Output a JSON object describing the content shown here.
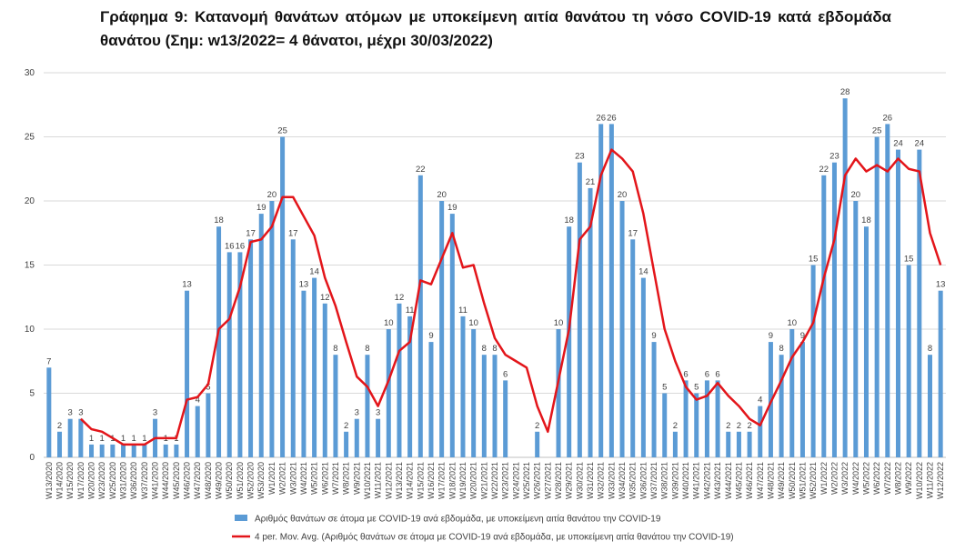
{
  "chart_data": {
    "type": "bar_line",
    "title": "Γράφημα 9: Κατανομή θανάτων ατόμων με υποκείμενη αιτία θανάτου τη νόσο COVID-19 κατά εβδομάδα θανάτου (Σημ: w13/2022= 4 θάνατοι, μέχρι 30/03/2022)",
    "categories": [
      "W13/2020",
      "W14/2020",
      "W15/2020",
      "W17/2020",
      "W20/2020",
      "W23/2020",
      "W25/2020",
      "W31/2020",
      "W36/2020",
      "W37/2020",
      "W41/2020",
      "W44/2020",
      "W45/2020",
      "W46/2020",
      "W47/2020",
      "W48/2020",
      "W49/2020",
      "W50/2020",
      "W51/2020",
      "W52/2020",
      "W53/2020",
      "W1/2021",
      "W2/2021",
      "W3/2021",
      "W4/2021",
      "W5/2021",
      "W6/2021",
      "W7/2021",
      "W8/2021",
      "W9/2021",
      "W10/2021",
      "W11/2021",
      "W12/2021",
      "W13/2021",
      "W14/2021",
      "W15/2021",
      "W16/2021",
      "W17/2021",
      "W18/2021",
      "W19/2021",
      "W20/2021",
      "W21/2021",
      "W22/2021",
      "W23/2021",
      "W24/2021",
      "W25/2021",
      "W26/2021",
      "W27/2021",
      "W28/2021",
      "W29/2021",
      "W30/2021",
      "W31/2021",
      "W32/2021",
      "W33/2021",
      "W34/2021",
      "W35/2021",
      "W36/2021",
      "W37/2021",
      "W38/2021",
      "W39/2021",
      "W40/2021",
      "W41/2021",
      "W42/2021",
      "W43/2021",
      "W44/2021",
      "W45/2021",
      "W46/2021",
      "W47/2021",
      "W48/2021",
      "W49/2021",
      "W50/2021",
      "W51/2021",
      "W52/2021",
      "W1/2022",
      "W2/2022",
      "W3/2022",
      "W4/2022",
      "W5/2022",
      "W6/2022",
      "W7/2022",
      "W8/2022",
      "W9/2022",
      "W10/2022",
      "W11/2022",
      "W12/2022"
    ],
    "series": [
      {
        "name": "Αριθμός θανάτων σε άτομα με COVID-19 ανά εβδομάδα, με υποκείμενη αιτία θανάτου την COVID-19",
        "kind": "bar",
        "color": "#5b9bd5",
        "values": [
          7,
          2,
          3,
          3,
          1,
          1,
          1,
          1,
          1,
          1,
          3,
          1,
          1,
          13,
          4,
          5,
          18,
          16,
          16,
          17,
          19,
          20,
          25,
          17,
          13,
          14,
          12,
          8,
          2,
          3,
          8,
          3,
          10,
          12,
          11,
          22,
          9,
          20,
          19,
          11,
          10,
          8,
          8,
          6,
          null,
          null,
          2,
          null,
          10,
          18,
          23,
          21,
          26,
          26,
          20,
          17,
          14,
          9,
          5,
          2,
          6,
          5,
          6,
          6,
          2,
          2,
          2,
          4,
          9,
          8,
          10,
          9,
          15,
          22,
          23,
          28,
          20,
          18,
          25,
          26,
          24,
          15,
          24,
          8,
          13
        ]
      },
      {
        "name": "4 per. Mov. Avg. (Αριθμός θανάτων σε άτομα με COVID-19 ανά εβδομάδα, με υποκείμενη αιτία θανάτου την COVID-19)",
        "kind": "line",
        "color": "#e3151a",
        "values": [
          null,
          null,
          null,
          3,
          2.2,
          2,
          1.5,
          1,
          1,
          1,
          1.5,
          1.5,
          1.5,
          4.5,
          4.7,
          5.7,
          10,
          10.8,
          13.3,
          16.8,
          17,
          18,
          20.3,
          20.3,
          18.8,
          17.3,
          14,
          11.8,
          9,
          6.3,
          5.5,
          4,
          6,
          8.3,
          9,
          13.8,
          13.5,
          15.5,
          17.5,
          14.8,
          15,
          12,
          9.3,
          8,
          7.5,
          7,
          4,
          2,
          6,
          10,
          17,
          18,
          22,
          24,
          23.3,
          22.3,
          19,
          14.5,
          10,
          7.5,
          5.5,
          4.5,
          4.8,
          5.8,
          4.8,
          4,
          3,
          2.5,
          4.3,
          6,
          7.8,
          9,
          10.5,
          14,
          17,
          22,
          23.3,
          22.3,
          22.8,
          22.3,
          23.3,
          22.5,
          22.3,
          17.5,
          15
        ]
      }
    ],
    "ylim": [
      0,
      30
    ],
    "yticks": [
      0,
      5,
      10,
      15,
      20,
      25,
      30
    ],
    "grid": true
  }
}
